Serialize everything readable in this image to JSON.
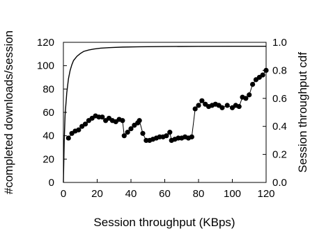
{
  "chart_data": {
    "type": "line",
    "xlabel": "Session throughput (KBps)",
    "ylabel_left": "#completed downloads/session",
    "ylabel_right": "Session throughput cdf",
    "xlim": [
      0,
      120
    ],
    "ylim_left": [
      0,
      120
    ],
    "ylim_right": [
      0.0,
      1.0
    ],
    "x_ticks": [
      "0",
      "20",
      "40",
      "60",
      "80",
      "100",
      "120"
    ],
    "y_ticks_left": [
      "0",
      "20",
      "40",
      "60",
      "80",
      "100",
      "120"
    ],
    "y_ticks_right": [
      "0.0",
      "0.2",
      "0.4",
      "0.6",
      "0.8",
      "1.0"
    ],
    "grid": false,
    "series": [
      {
        "axis": "left",
        "marker": "circle",
        "color": "#000000",
        "x": [
          3,
          5,
          7,
          9,
          11,
          13,
          15,
          17,
          19,
          21,
          23,
          25,
          27,
          29,
          31,
          33,
          35,
          36,
          38,
          40,
          42,
          44,
          45,
          47,
          49,
          51,
          53,
          55,
          57,
          59,
          61,
          63,
          64,
          66,
          68,
          70,
          72,
          74,
          76,
          78,
          80,
          82,
          84,
          86,
          88,
          90,
          92,
          94,
          97,
          100,
          102,
          104,
          106,
          108,
          110,
          112,
          114,
          116,
          118,
          120
        ],
        "y": [
          38,
          42,
          44,
          45,
          48,
          50,
          53,
          55,
          57,
          56,
          56,
          53,
          55,
          53,
          52,
          54,
          53,
          40,
          43,
          46,
          49,
          51,
          53,
          42,
          36,
          36,
          37,
          38,
          39,
          39,
          40,
          43,
          36,
          37,
          38,
          38,
          39,
          38,
          39,
          63,
          66,
          70,
          67,
          65,
          66,
          67,
          66,
          64,
          66,
          64,
          66,
          65,
          73,
          72,
          75,
          84,
          88,
          90,
          92,
          96
        ]
      },
      {
        "axis": "right",
        "marker": "none",
        "color": "#000000",
        "x": [
          0,
          0.5,
          1,
          2,
          3,
          4,
          5,
          6,
          8,
          10,
          12,
          15,
          18,
          22,
          27,
          35,
          45,
          60,
          80,
          100,
          120
        ],
        "y": [
          0.0,
          0.3,
          0.48,
          0.64,
          0.74,
          0.8,
          0.84,
          0.87,
          0.9,
          0.92,
          0.935,
          0.945,
          0.952,
          0.958,
          0.962,
          0.966,
          0.968,
          0.97,
          0.971,
          0.972,
          0.972
        ]
      }
    ]
  }
}
